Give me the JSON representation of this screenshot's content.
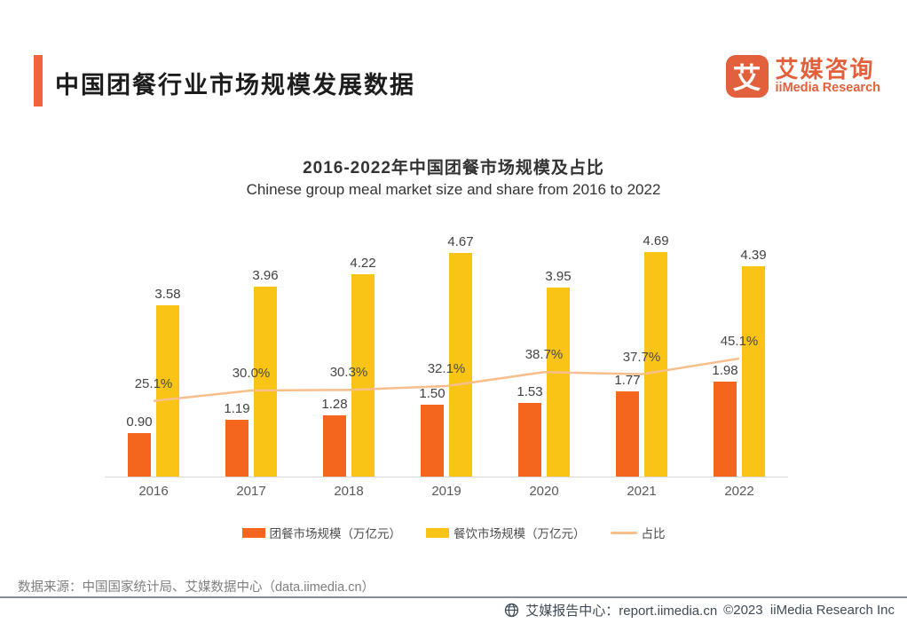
{
  "header": {
    "title": "中国团餐行业市场规模发展数据",
    "logo": {
      "icon_char": "艾",
      "name_cn": "艾媒咨询",
      "name_en": "iiMedia Research"
    }
  },
  "chart": {
    "title_cn": "2016-2022年中国团餐市场规模及占比",
    "title_en": "Chinese group meal market size and share from 2016 to 2022"
  },
  "chart_data": {
    "type": "bar+line",
    "categories": [
      "2016",
      "2017",
      "2018",
      "2019",
      "2020",
      "2021",
      "2022"
    ],
    "series": [
      {
        "name": "团餐市场规模（万亿元）",
        "type": "bar",
        "color": "#f4661e",
        "values": [
          0.9,
          1.19,
          1.28,
          1.5,
          1.53,
          1.77,
          1.98
        ]
      },
      {
        "name": "餐饮市场规模（万亿元）",
        "type": "bar",
        "color": "#f9c415",
        "values": [
          3.58,
          3.96,
          4.22,
          4.67,
          3.95,
          4.69,
          4.39
        ]
      },
      {
        "name": "占比",
        "type": "line",
        "color": "#f8be8b",
        "values_pct": [
          25.1,
          30.0,
          30.3,
          32.1,
          38.7,
          37.7,
          45.1
        ]
      }
    ],
    "title": "2016-2022年中国团餐市场规模及占比",
    "xlabel": "",
    "ylabel": "",
    "ylim": [
      0,
      5
    ],
    "y2lim": [
      -11,
      102
    ],
    "grid": false,
    "legend_position": "bottom"
  },
  "footer": {
    "source": "数据来源：中国国家统计局、艾媒数据中心（data.iimedia.cn）",
    "report_center": "艾媒报告中心：report.iimedia.cn",
    "copyright": "©2023  iiMedia Research Inc"
  }
}
